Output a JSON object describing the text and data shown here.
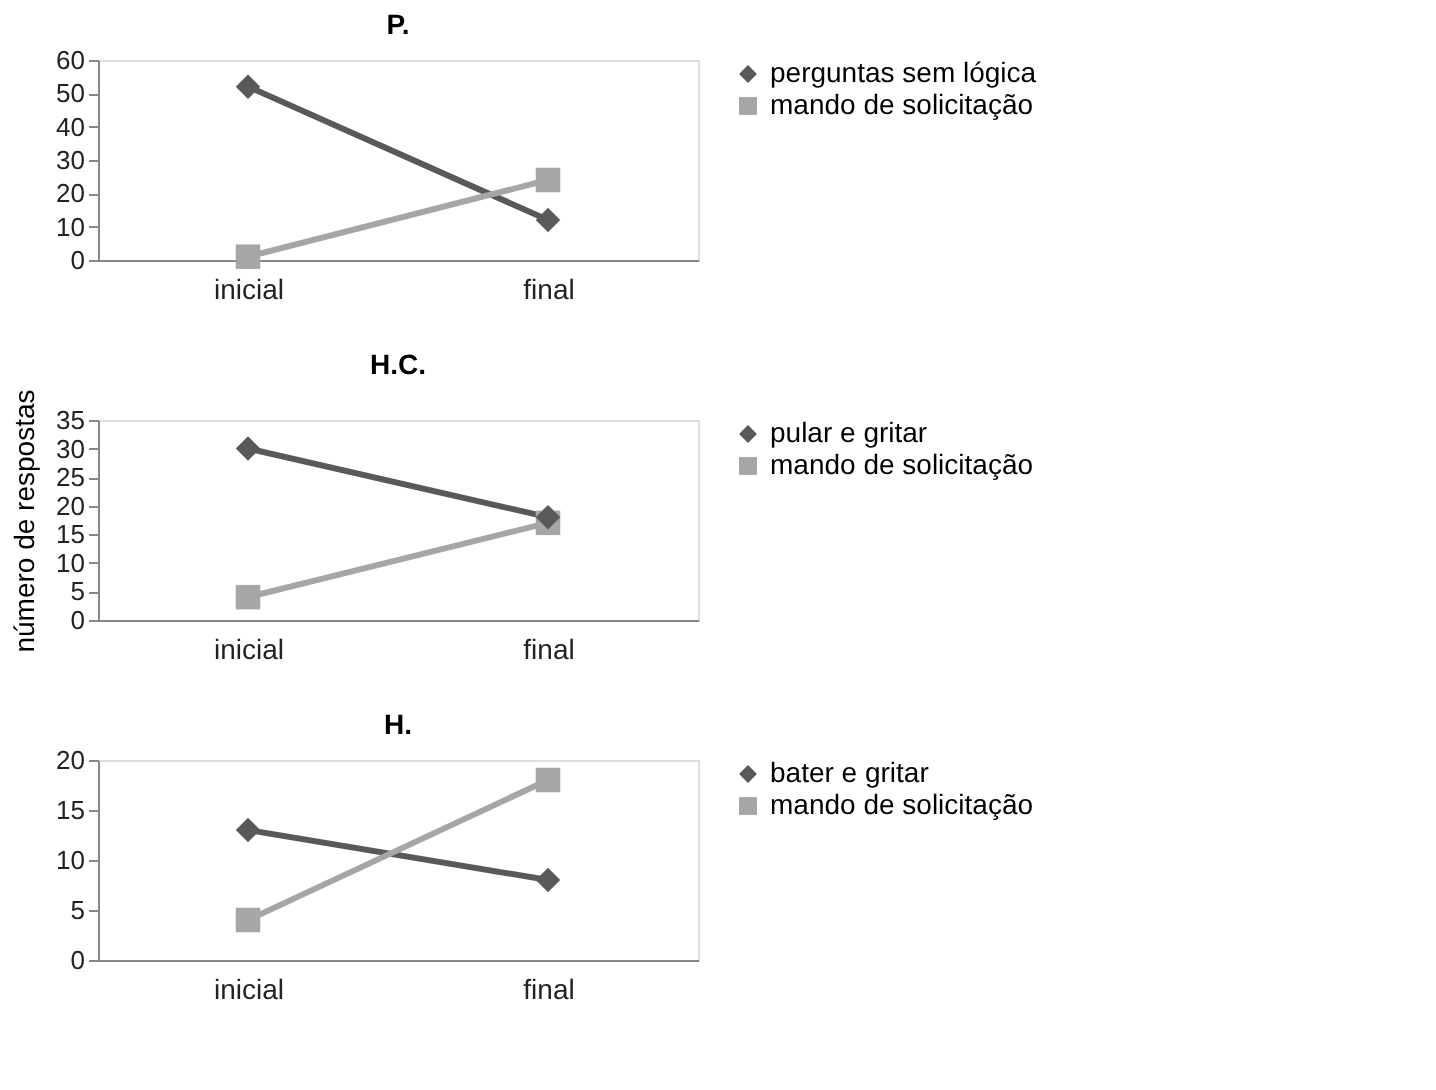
{
  "chart_data": [
    {
      "type": "line",
      "title": "P.",
      "categories": [
        "inicial",
        "final"
      ],
      "ylim": [
        0,
        60
      ],
      "yticks": [
        0,
        10,
        20,
        30,
        40,
        50,
        60
      ],
      "grid": false,
      "legend": "right",
      "series": [
        {
          "name": "perguntas sem lógica",
          "color": "#595959",
          "marker": "diamond",
          "values": [
            52,
            12
          ]
        },
        {
          "name": "mando de solicitação",
          "color": "#a6a6a6",
          "marker": "square",
          "values": [
            1,
            24
          ]
        }
      ]
    },
    {
      "type": "line",
      "title": "H.C.",
      "ylabel": "número de respostas",
      "categories": [
        "inicial",
        "final"
      ],
      "ylim": [
        0,
        35
      ],
      "yticks": [
        0,
        5,
        10,
        15,
        20,
        25,
        30,
        35
      ],
      "grid": false,
      "legend": "right",
      "series": [
        {
          "name": "pular e gritar",
          "color": "#595959",
          "marker": "diamond",
          "values": [
            30,
            18
          ]
        },
        {
          "name": "mando de solicitação",
          "color": "#a6a6a6",
          "marker": "square",
          "values": [
            4,
            17
          ]
        }
      ]
    },
    {
      "type": "line",
      "title": "H.",
      "categories": [
        "inicial",
        "final"
      ],
      "ylim": [
        0,
        20
      ],
      "yticks": [
        0,
        5,
        10,
        15,
        20
      ],
      "grid": false,
      "legend": "right",
      "series": [
        {
          "name": "bater e gritar",
          "color": "#595959",
          "marker": "diamond",
          "values": [
            13,
            8
          ]
        },
        {
          "name": "mando de solicitação",
          "color": "#a6a6a6",
          "marker": "square",
          "values": [
            4,
            18
          ]
        }
      ]
    }
  ]
}
